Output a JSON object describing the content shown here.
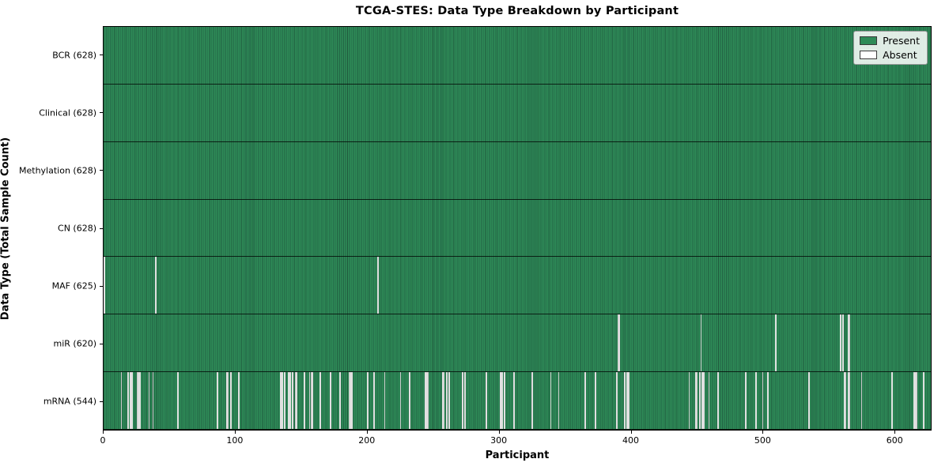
{
  "chart_data": {
    "type": "heatmap",
    "title": "TCGA-STES: Data Type Breakdown by Participant",
    "xlabel": "Participant",
    "ylabel": "Data Type (Total Sample Count)",
    "n_participants": 628,
    "xlim": [
      0,
      628
    ],
    "x_ticks": [
      0,
      100,
      200,
      300,
      400,
      500,
      600
    ],
    "grid": false,
    "legend_position": "upper right",
    "colors": {
      "present": "#2e8b57",
      "present_edge": "#226344",
      "absent": "#f7f7f7",
      "row_separator": "#0a0f0a",
      "figure_background": "#ffffff"
    },
    "legend": [
      {
        "label": "Present",
        "color": "#2e8b57"
      },
      {
        "label": "Absent",
        "color": "#ffffff"
      }
    ],
    "rows": [
      {
        "label": "BCR (628)",
        "data_type": "BCR",
        "present_count": 628,
        "absent_participants": []
      },
      {
        "label": "Clinical (628)",
        "data_type": "Clinical",
        "present_count": 628,
        "absent_participants": []
      },
      {
        "label": "Methylation (628)",
        "data_type": "Methylation",
        "present_count": 628,
        "absent_participants": []
      },
      {
        "label": "CN (628)",
        "data_type": "CN",
        "present_count": 628,
        "absent_participants": []
      },
      {
        "label": "MAF (625)",
        "data_type": "MAF",
        "present_count": 625,
        "absent_participants": [
          0,
          39,
          208
        ]
      },
      {
        "label": "miR (620)",
        "data_type": "miR",
        "present_count": 620,
        "absent_participants": [
          390,
          391,
          453,
          510,
          559,
          561,
          565,
          566
        ]
      },
      {
        "label": "mRNA (544)",
        "data_type": "mRNA",
        "present_count": 544,
        "absent_participants": [
          13,
          18,
          20,
          21,
          25,
          26,
          27,
          34,
          37,
          56,
          86,
          93,
          94,
          96,
          102,
          134,
          135,
          137,
          140,
          141,
          143,
          145,
          146,
          152,
          156,
          157,
          158,
          164,
          172,
          179,
          186,
          187,
          188,
          200,
          205,
          213,
          225,
          232,
          244,
          245,
          246,
          257,
          258,
          260,
          262,
          272,
          274,
          290,
          301,
          302,
          304,
          311,
          325,
          339,
          345,
          365,
          373,
          389,
          395,
          397,
          398,
          444,
          449,
          450,
          452,
          454,
          455,
          459,
          466,
          487,
          495,
          500,
          504,
          535,
          562,
          563,
          565,
          566,
          575,
          598,
          615,
          616,
          617,
          622
        ]
      }
    ]
  }
}
